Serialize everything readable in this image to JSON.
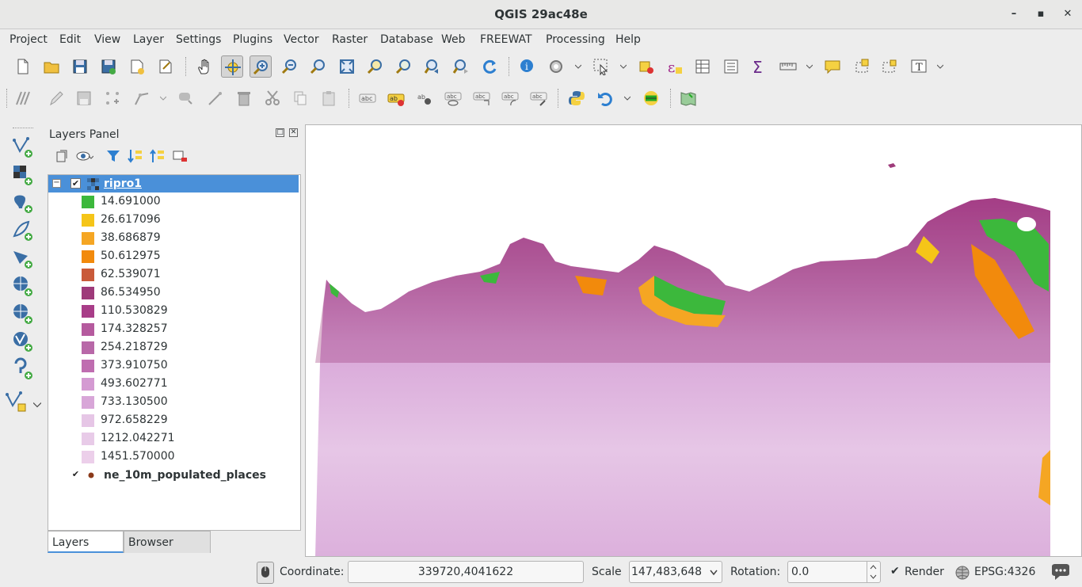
{
  "window": {
    "title": "QGIS 29ac48e",
    "minimize": "–",
    "maximize": "▪",
    "close": "✕"
  },
  "menu": [
    "Project",
    "Edit",
    "View",
    "Layer",
    "Settings",
    "Plugins",
    "Vector",
    "Raster",
    "Database",
    "Web",
    "FREEWAT",
    "Processing",
    "Help"
  ],
  "layers_panel": {
    "title": "Layers Panel",
    "layers": [
      {
        "name": "ripro1",
        "checked": true,
        "legend": [
          {
            "label": "14.691000",
            "color": "#3cb83c"
          },
          {
            "label": "26.617096",
            "color": "#f5c518"
          },
          {
            "label": "38.686879",
            "color": "#f5a623"
          },
          {
            "label": "50.612975",
            "color": "#f28a0c"
          },
          {
            "label": "62.539071",
            "color": "#c95a3a"
          },
          {
            "label": "86.534950",
            "color": "#9e3a7a"
          },
          {
            "label": "110.530829",
            "color": "#a83d88"
          },
          {
            "label": "174.328257",
            "color": "#b55a9e"
          },
          {
            "label": "254.218729",
            "color": "#b868a8"
          },
          {
            "label": "373.910750",
            "color": "#bf6db0"
          },
          {
            "label": "493.602771",
            "color": "#d49ad2"
          },
          {
            "label": "733.130500",
            "color": "#d8a6d8"
          },
          {
            "label": "972.658229",
            "color": "#e6c6e6"
          },
          {
            "label": "1212.042271",
            "color": "#e8cbe8"
          },
          {
            "label": "1451.570000",
            "color": "#eccfea"
          }
        ]
      },
      {
        "name": "ne_10m_populated_places",
        "checked": true,
        "marker_color": "#8b3a1a"
      }
    ],
    "tabs": [
      "Layers Panel",
      "Browser Panel"
    ]
  },
  "status": {
    "coordinate_label": "Coordinate:",
    "coordinate_value": "339720,4041622",
    "scale_label": "Scale",
    "scale_value": "147,483,648",
    "rotation_label": "Rotation:",
    "rotation_value": "0.0",
    "render_label": "Render",
    "render_checked": true,
    "crs": "EPSG:4326"
  }
}
